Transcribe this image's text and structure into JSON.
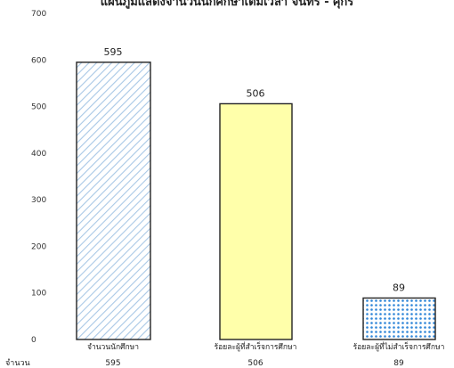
{
  "chart_data": {
    "type": "bar",
    "title": "แผนภูมิแสดงจำนวนนักศึกษาเต็มเวลา จันทร์ - ศุกร์",
    "categories": [
      "จำนวนนักศึกษา",
      "ร้อยละผู้ที่สำเร็จการศึกษา",
      "ร้อยละผู้ที่ไม่สำเร็จการศึกษา"
    ],
    "values": [
      595,
      506,
      89
    ],
    "value_labels": [
      "595",
      "506",
      "89"
    ],
    "ylim": [
      0,
      700
    ],
    "yticks": [
      0,
      100,
      200,
      300,
      400,
      500,
      600,
      700
    ],
    "grid": false,
    "bar_fills": [
      "diagonal-hatch",
      "solid",
      "dotted"
    ],
    "colors": {
      "bar1_stripe": "#a9c8e6",
      "bar2_fill": "#ffffaa",
      "bar3_dots": "#2f86d8",
      "outline": "#222222"
    },
    "table_row_label": "จำนวน",
    "table_values": [
      "595",
      "506",
      "89"
    ]
  }
}
